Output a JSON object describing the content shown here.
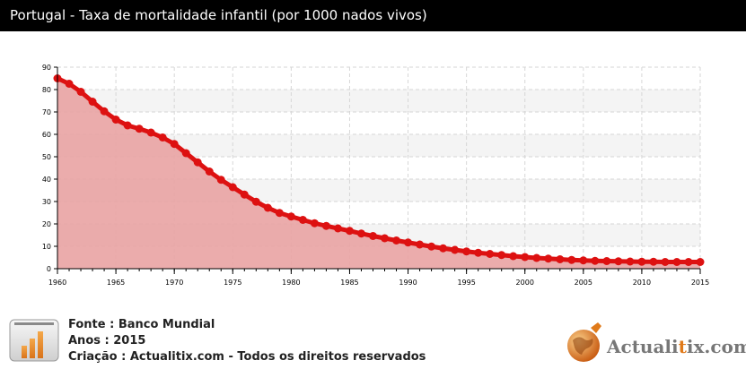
{
  "title": "Portugal - Taxa de mortalidade infantil (por 1000 nados vivos)",
  "colors": {
    "line": "#dd1111",
    "area": "#e9a3a3",
    "band": "#f4f4f4",
    "titlebar": "#000000"
  },
  "chart_data": {
    "type": "area",
    "x": [
      1960,
      1961,
      1962,
      1963,
      1964,
      1965,
      1966,
      1967,
      1968,
      1969,
      1970,
      1971,
      1972,
      1973,
      1974,
      1975,
      1976,
      1977,
      1978,
      1979,
      1980,
      1981,
      1982,
      1983,
      1984,
      1985,
      1986,
      1987,
      1988,
      1989,
      1990,
      1991,
      1992,
      1993,
      1994,
      1995,
      1996,
      1997,
      1998,
      1999,
      2000,
      2001,
      2002,
      2003,
      2004,
      2005,
      2006,
      2007,
      2008,
      2009,
      2010,
      2011,
      2012,
      2013,
      2014,
      2015
    ],
    "values": [
      85.0,
      82.6,
      79.0,
      74.6,
      70.3,
      66.6,
      64.0,
      62.5,
      60.8,
      58.6,
      55.7,
      51.6,
      47.5,
      43.4,
      39.7,
      36.4,
      33.1,
      29.9,
      27.2,
      24.9,
      23.3,
      21.8,
      20.3,
      19.1,
      18.0,
      16.9,
      15.7,
      14.6,
      13.6,
      12.6,
      11.7,
      10.8,
      9.9,
      9.1,
      8.4,
      7.7,
      7.1,
      6.6,
      6.1,
      5.6,
      5.2,
      4.8,
      4.5,
      4.2,
      3.9,
      3.7,
      3.5,
      3.4,
      3.3,
      3.2,
      3.1,
      3.1,
      3.0,
      3.0,
      3.0,
      3.0
    ],
    "ylim": [
      0,
      90
    ],
    "yticks": [
      0,
      10,
      20,
      30,
      40,
      50,
      60,
      70,
      80,
      90
    ],
    "xticks": [
      1960,
      1965,
      1970,
      1975,
      1980,
      1985,
      1990,
      1995,
      2000,
      2005,
      2010,
      2015
    ],
    "grid": true
  },
  "footer": {
    "source": "Fonte : Banco Mundial",
    "years": "Anos : 2015",
    "credit": "Criação : Actualitix.com - Todos os direitos reservados",
    "brand_prefix": "Actuali",
    "brand_x": "t",
    "brand_suffix": "ix.com"
  }
}
